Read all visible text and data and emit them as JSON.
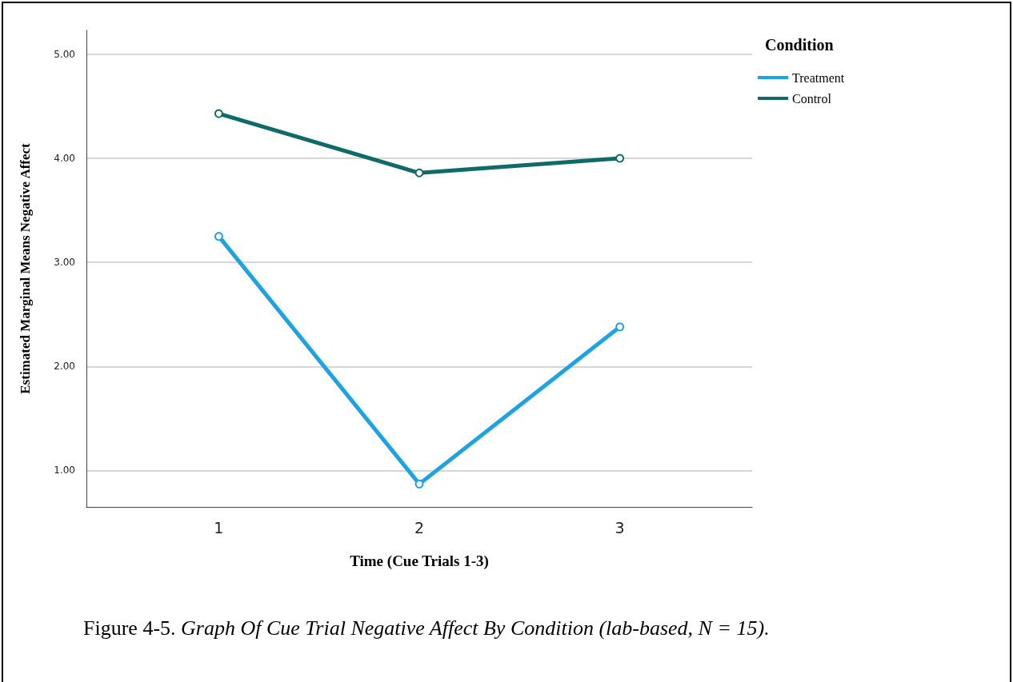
{
  "chart_data": {
    "type": "line",
    "xlabel": "Time (Cue Trials 1-3)",
    "ylabel": "Estimated Marginal Means Negative Affect",
    "legend_title": "Condition",
    "x": [
      1,
      2,
      3
    ],
    "xlim": [
      0.34,
      3.66
    ],
    "xticks": [
      1,
      2,
      3
    ],
    "ylim": [
      0.65,
      5.23
    ],
    "yticks": [
      {
        "value": 1,
        "label": "1.00"
      },
      {
        "value": 2,
        "label": "2.00"
      },
      {
        "value": 3,
        "label": "3.00"
      },
      {
        "value": 4,
        "label": "4.00"
      },
      {
        "value": 5,
        "label": "5.00"
      }
    ],
    "series": [
      {
        "name": "Treatment",
        "color": "#1ba3e8",
        "values": [
          3.25,
          0.87,
          2.38
        ]
      },
      {
        "name": "Control",
        "color": "#0e6b67",
        "values": [
          4.43,
          3.86,
          4.0
        ]
      }
    ],
    "grid": "y",
    "legend": "top right",
    "marker": "circle",
    "line_style": "solid",
    "annotations": [
      "Figure 4-5. Graph Of Cue Trial Negative Affect By Condition (lab-based, N = 15)."
    ]
  }
}
